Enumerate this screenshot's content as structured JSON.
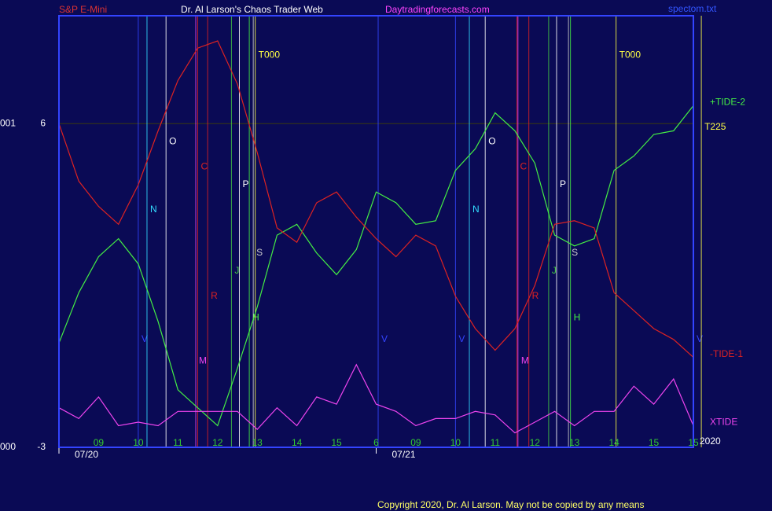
{
  "header": {
    "left": "S&P E-Mini",
    "center": "Dr. Al Larson's Chaos Trader Web",
    "right": "Daytradingforecasts.com",
    "file": "spectom.txt"
  },
  "footer": "Copyright 2020, Dr. Al Larson. May not be copied by any means",
  "chart_data": {
    "type": "line",
    "categories": [
      null,
      null,
      "09",
      null,
      "10",
      null,
      "11",
      null,
      "12",
      null,
      "13",
      null,
      "14",
      null,
      "15",
      null,
      "6",
      null,
      "09",
      null,
      "10",
      null,
      "11",
      null,
      "12",
      null,
      "13",
      null,
      "14",
      null,
      "15",
      null,
      "15"
    ],
    "series": [
      {
        "name": "+TIDE-2",
        "color": "#44ee44",
        "values": [
          -0.1,
          1.3,
          2.3,
          2.8,
          2.1,
          0.5,
          -1.4,
          -1.9,
          -2.4,
          -0.8,
          0.9,
          2.9,
          3.2,
          2.4,
          1.8,
          2.5,
          4.1,
          3.8,
          3.2,
          3.3,
          4.7,
          5.3,
          6.3,
          5.8,
          4.9,
          2.9,
          2.6,
          2.8,
          4.7,
          5.1,
          5.7,
          5.8,
          6.5
        ]
      },
      {
        "name": "-TIDE-1",
        "color": "#dd2222",
        "values": [
          6.0,
          4.4,
          3.7,
          3.2,
          4.3,
          5.8,
          7.2,
          8.1,
          8.3,
          7.1,
          5.2,
          3.1,
          2.7,
          3.8,
          4.1,
          3.4,
          2.8,
          2.3,
          2.9,
          2.6,
          1.2,
          0.3,
          -0.3,
          0.3,
          1.5,
          3.2,
          3.3,
          3.1,
          1.3,
          0.8,
          0.3,
          0.0,
          -0.5
        ]
      },
      {
        "name": "XTIDE",
        "color": "#ee44ee",
        "values": [
          -1.9,
          -2.2,
          -1.6,
          -2.4,
          -2.3,
          -2.4,
          -2.0,
          -2.0,
          -2.0,
          -2.0,
          -2.5,
          -1.9,
          -2.4,
          -1.6,
          -1.8,
          -0.7,
          -1.8,
          -2.0,
          -2.4,
          -2.2,
          -2.2,
          -2.0,
          -2.1,
          -2.6,
          -2.3,
          -2.0,
          -2.4,
          -2.0,
          -2.0,
          -1.3,
          -1.8,
          -1.1,
          -2.4
        ]
      }
    ],
    "ylim": [
      -3,
      9
    ],
    "yticks": [
      -3,
      6
    ],
    "y_prefix_labels": [
      "000",
      "001"
    ],
    "grid": true,
    "dates": [
      {
        "label": "07/20",
        "x": 0
      },
      {
        "label": "07/21",
        "x": 16
      }
    ],
    "year": "2020",
    "markers": [
      {
        "label": "V",
        "color": "#3344ff",
        "x": 4.0,
        "y": 0.0
      },
      {
        "label": "N",
        "color": "#33ddff",
        "x": 4.44,
        "y": 3.6
      },
      {
        "label": "O",
        "color": "#ffffff",
        "x": 5.4,
        "y": 5.5
      },
      {
        "label": "M",
        "color": "#ee44ee",
        "x": 6.9,
        "y": -0.6
      },
      {
        "label": "C",
        "color": "#dd2222",
        "x": 7.0,
        "y": 4.8
      },
      {
        "label": "R",
        "color": "#dd2222",
        "x": 7.5,
        "y": 1.2
      },
      {
        "label": "J",
        "color": "#44cc44",
        "x": 8.7,
        "y": 1.9
      },
      {
        "label": "P",
        "color": "#ffffff",
        "x": 9.1,
        "y": 4.3
      },
      {
        "label": "H",
        "color": "#44ee44",
        "x": 9.6,
        "y": 0.6
      },
      {
        "label": "S",
        "color": "#cccccc",
        "x": 9.8,
        "y": 2.4
      },
      {
        "label": "T000",
        "color": "#ffff44",
        "x": 9.9,
        "y": 7.9
      },
      {
        "label": "V",
        "color": "#3344ff",
        "x": 16.1,
        "y": 0.0
      },
      {
        "label": "V",
        "color": "#3344ff",
        "x": 20.0,
        "y": 0.0
      },
      {
        "label": "N",
        "color": "#33ddff",
        "x": 20.7,
        "y": 3.6
      },
      {
        "label": "O",
        "color": "#ffffff",
        "x": 21.5,
        "y": 5.5
      },
      {
        "label": "C",
        "color": "#dd2222",
        "x": 23.1,
        "y": 4.8
      },
      {
        "label": "M",
        "color": "#ee44ee",
        "x": 23.15,
        "y": -0.6
      },
      {
        "label": "R",
        "color": "#dd2222",
        "x": 23.7,
        "y": 1.2
      },
      {
        "label": "J",
        "color": "#44cc44",
        "x": 24.7,
        "y": 1.9
      },
      {
        "label": "P",
        "color": "#ffffff",
        "x": 25.1,
        "y": 4.3
      },
      {
        "label": "S",
        "color": "#cccccc",
        "x": 25.7,
        "y": 2.4
      },
      {
        "label": "H",
        "color": "#44ee44",
        "x": 25.8,
        "y": 0.6
      },
      {
        "label": "T000",
        "color": "#ffff44",
        "x": 28.1,
        "y": 7.9
      },
      {
        "label": "V",
        "color": "#3344ff",
        "x": 32.0,
        "y": 0.0
      },
      {
        "label": "T225",
        "color": "#ffff44",
        "x": 32.4,
        "y": 5.9
      }
    ]
  }
}
